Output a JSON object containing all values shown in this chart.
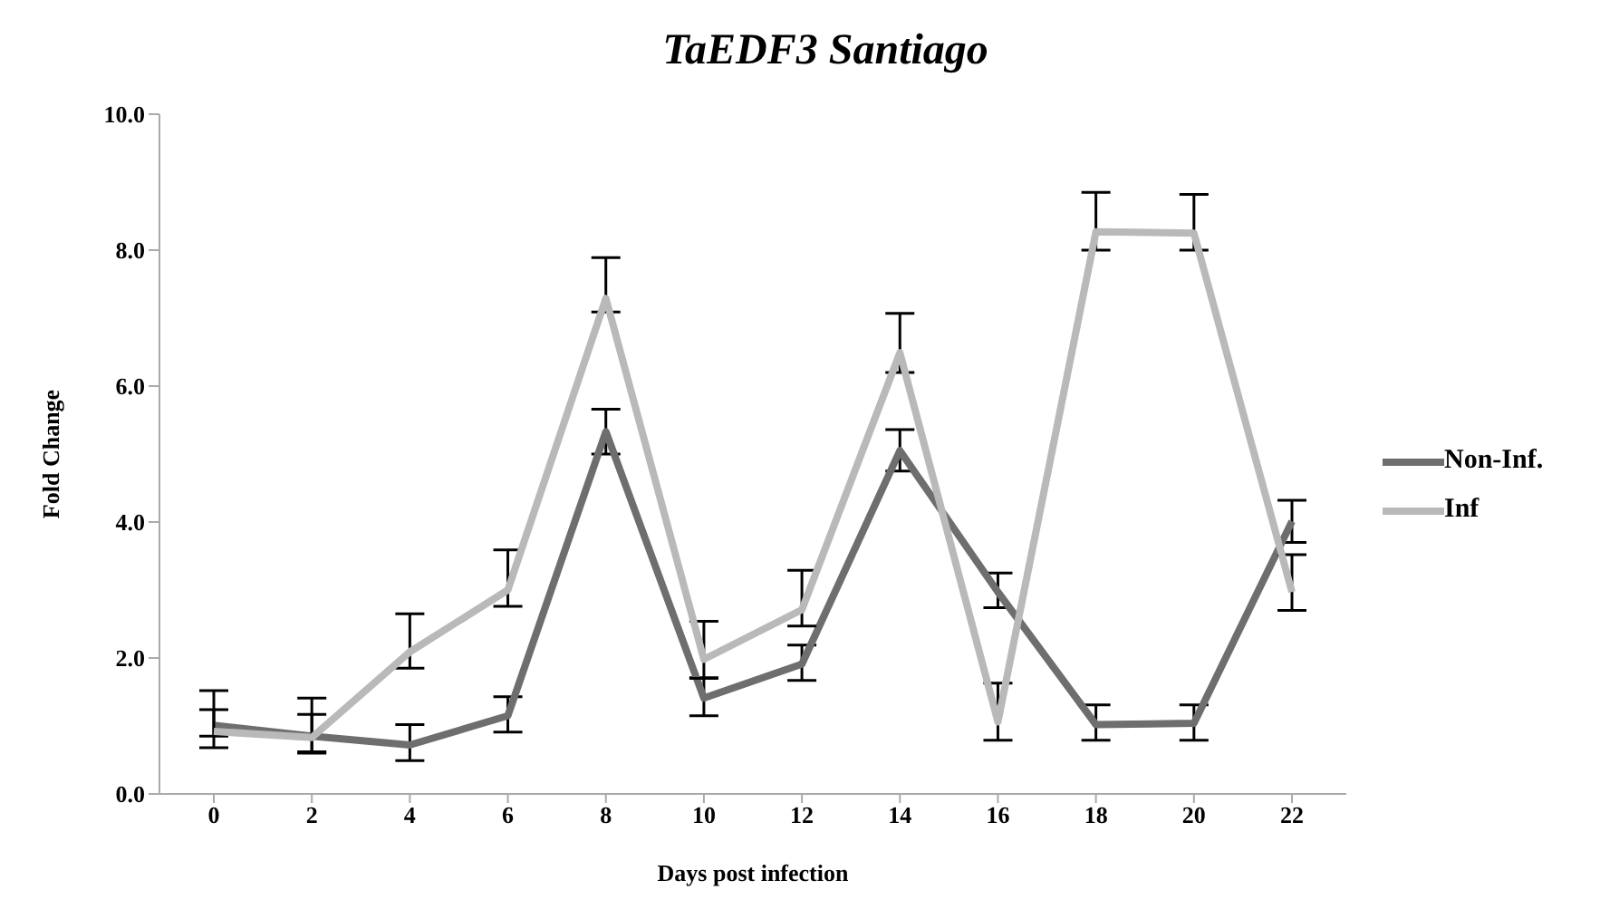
{
  "chart_data": {
    "type": "line",
    "title": "TaEDF3 Santiago",
    "xlabel": "Days post infection",
    "ylabel": "Fold Change",
    "categories": [
      "0",
      "2",
      "4",
      "6",
      "8",
      "10",
      "12",
      "14",
      "16",
      "18",
      "20",
      "22"
    ],
    "series": [
      {
        "name": "Non-Inf.",
        "color": "#6e6e6e",
        "values": [
          1.01,
          0.85,
          0.72,
          1.15,
          5.33,
          1.41,
          1.91,
          5.05,
          2.97,
          1.02,
          1.04,
          4.01
        ],
        "errors": [
          [
            0.85,
            1.24
          ],
          [
            0.62,
            1.17
          ],
          [
            0.49,
            1.02
          ],
          [
            0.91,
            1.43
          ],
          [
            5.0,
            5.66
          ],
          [
            1.15,
            1.71
          ],
          [
            1.67,
            2.19
          ],
          [
            4.75,
            5.36
          ],
          [
            2.74,
            3.25
          ],
          [
            0.79,
            1.31
          ],
          [
            0.79,
            1.31
          ],
          [
            3.7,
            4.32
          ]
        ]
      },
      {
        "name": "Inf",
        "color": "#b9b9b9",
        "values": [
          0.92,
          0.83,
          2.09,
          3.0,
          7.29,
          1.98,
          2.71,
          6.49,
          1.06,
          8.27,
          8.25,
          2.97
        ],
        "errors": [
          [
            0.68,
            1.52
          ],
          [
            0.6,
            1.41
          ],
          [
            1.85,
            2.65
          ],
          [
            2.76,
            3.59
          ],
          [
            7.09,
            7.89
          ],
          [
            1.7,
            2.54
          ],
          [
            2.47,
            3.29
          ],
          [
            6.2,
            7.07
          ],
          [
            0.79,
            1.63
          ],
          [
            8.0,
            8.85
          ],
          [
            8.0,
            8.82
          ],
          [
            2.7,
            3.52
          ]
        ]
      }
    ],
    "ylim": [
      0,
      10
    ],
    "yticks": [
      {
        "value": 0,
        "label": "0.0"
      },
      {
        "value": 2,
        "label": "2.0"
      },
      {
        "value": 4,
        "label": "4.0"
      },
      {
        "value": 6,
        "label": "6.0"
      },
      {
        "value": 8,
        "label": "8.0"
      },
      {
        "value": 10,
        "label": "10.0"
      }
    ],
    "grid": false,
    "legend": "right",
    "marker": "none",
    "line_style": "solid"
  }
}
